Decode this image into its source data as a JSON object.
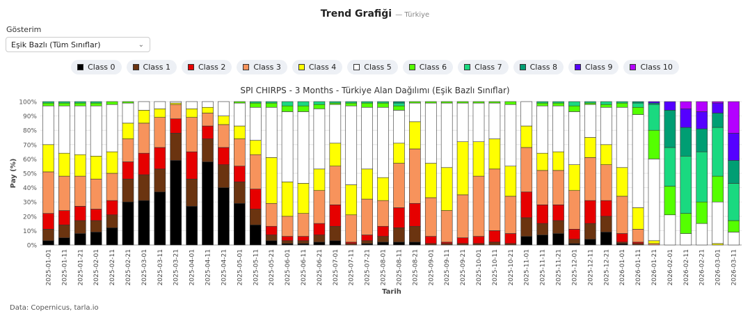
{
  "header": {
    "title": "Trend Grafiği",
    "subtitle": "— Türkiye"
  },
  "control": {
    "label": "Gösterim",
    "value": "Eşik Bazlı (Tüm Sınıflar)"
  },
  "footer": "Data: Copernicus, tarla.io",
  "chart_data": {
    "type": "bar",
    "stacked": true,
    "title": "SPI CHIRPS - 3 Months - Türkiye Alan Dağılımı (Eşik Bazlı Sınıflar)",
    "x_label": "Tarih",
    "y_label": "Pay (%)",
    "ylim": [
      0,
      100
    ],
    "yticks": [
      {
        "value": 0,
        "label": "0%"
      },
      {
        "value": 10,
        "label": "10%"
      },
      {
        "value": 20,
        "label": "20%"
      },
      {
        "value": 30,
        "label": "30%"
      },
      {
        "value": 40,
        "label": "40%"
      },
      {
        "value": 50,
        "label": "50%"
      },
      {
        "value": 60,
        "label": "60%"
      },
      {
        "value": 70,
        "label": "70%"
      },
      {
        "value": 80,
        "label": "80%"
      },
      {
        "value": 90,
        "label": "90%"
      },
      {
        "value": 100,
        "label": "100%"
      }
    ],
    "grid": true,
    "categories": [
      "2025-01-01",
      "2025-01-11",
      "2025-01-21",
      "2025-02-01",
      "2025-02-11",
      "2025-02-21",
      "2025-03-01",
      "2025-03-11",
      "2025-03-21",
      "2025-04-01",
      "2025-04-11",
      "2025-04-21",
      "2025-05-01",
      "2025-05-11",
      "2025-05-21",
      "2025-06-01",
      "2025-06-11",
      "2025-06-21",
      "2025-07-01",
      "2025-07-11",
      "2025-07-21",
      "2025-08-01",
      "2025-08-11",
      "2025-08-21",
      "2025-09-01",
      "2025-09-11",
      "2025-09-21",
      "2025-10-01",
      "2025-10-11",
      "2025-10-21",
      "2025-11-01",
      "2025-11-11",
      "2025-11-21",
      "2025-12-01",
      "2025-12-11",
      "2025-12-21",
      "2026-01-01",
      "2026-01-11",
      "2026-01-21",
      "2026-02-01",
      "2026-02-11",
      "2026-02-21",
      "2026-03-01",
      "2026-03-11"
    ],
    "series": [
      {
        "name": "Class 0",
        "color": "#000000",
        "values": [
          3,
          5,
          8,
          9,
          12,
          30,
          31,
          37,
          59,
          27,
          58,
          40,
          29,
          14,
          3,
          1,
          1,
          2,
          3,
          0,
          1,
          2,
          2,
          2,
          0,
          0,
          0,
          0,
          0,
          0,
          6,
          7,
          8,
          1,
          4,
          9,
          1,
          0,
          0,
          0,
          0,
          0,
          0,
          0
        ]
      },
      {
        "name": "Class 1",
        "color": "#6b3410",
        "values": [
          8,
          9,
          9,
          8,
          9,
          16,
          18,
          16,
          19,
          19,
          16,
          16,
          15,
          11,
          4,
          2,
          2,
          5,
          10,
          1,
          2,
          4,
          10,
          11,
          1,
          1,
          1,
          1,
          2,
          1,
          13,
          8,
          9,
          3,
          11,
          11,
          1,
          1,
          0,
          0,
          0,
          0,
          0,
          0
        ]
      },
      {
        "name": "Class 2",
        "color": "#e60000",
        "values": [
          11,
          10,
          10,
          8,
          10,
          12,
          15,
          15,
          10,
          19,
          9,
          12,
          11,
          14,
          6,
          3,
          3,
          8,
          15,
          1,
          4,
          7,
          14,
          16,
          5,
          1,
          4,
          5,
          8,
          7,
          18,
          13,
          11,
          7,
          16,
          11,
          6,
          1,
          0,
          0,
          0,
          0,
          0,
          0
        ]
      },
      {
        "name": "Class 3",
        "color": "#f7935c",
        "values": [
          29,
          24,
          21,
          21,
          19,
          16,
          21,
          21,
          10,
          24,
          9,
          16,
          19,
          24,
          16,
          14,
          16,
          23,
          27,
          19,
          25,
          18,
          31,
          38,
          27,
          22,
          30,
          42,
          43,
          26,
          31,
          24,
          24,
          27,
          30,
          25,
          26,
          9,
          1,
          0,
          0,
          0,
          0,
          0
        ]
      },
      {
        "name": "Class 4",
        "color": "#ffff00",
        "values": [
          19,
          16,
          15,
          16,
          15,
          11,
          9,
          6,
          1,
          6,
          4,
          6,
          9,
          10,
          32,
          24,
          21,
          15,
          16,
          21,
          21,
          16,
          14,
          19,
          24,
          30,
          37,
          24,
          21,
          21,
          15,
          12,
          13,
          18,
          14,
          14,
          20,
          15,
          2,
          0,
          0,
          0,
          1,
          0
        ]
      },
      {
        "name": "Class 5",
        "color": "#ffffff",
        "values": [
          27,
          33,
          34,
          35,
          33,
          14,
          6,
          5,
          1,
          5,
          4,
          10,
          16,
          23,
          35,
          49,
          50,
          42,
          27,
          55,
          43,
          49,
          23,
          13,
          42,
          45,
          27,
          27,
          25,
          43,
          17,
          33,
          32,
          37,
          23,
          26,
          42,
          65,
          57,
          21,
          8,
          15,
          29,
          9
        ]
      },
      {
        "name": "Class 6",
        "color": "#55ff00",
        "values": [
          2,
          2,
          2,
          2,
          2,
          1,
          0,
          0,
          0,
          0,
          0,
          0,
          1,
          3,
          3,
          4,
          4,
          3,
          1,
          2,
          3,
          3,
          3,
          1,
          1,
          1,
          1,
          1,
          1,
          2,
          0,
          2,
          2,
          4,
          1,
          2,
          3,
          5,
          20,
          20,
          14,
          15,
          18,
          8
        ]
      },
      {
        "name": "Class 7",
        "color": "#1ad980",
        "values": [
          1,
          1,
          1,
          1,
          0,
          0,
          0,
          0,
          0,
          0,
          0,
          0,
          0,
          1,
          1,
          3,
          3,
          2,
          1,
          1,
          1,
          1,
          2,
          0,
          0,
          0,
          0,
          0,
          0,
          0,
          0,
          1,
          1,
          3,
          1,
          2,
          1,
          3,
          18,
          27,
          40,
          35,
          34,
          26
        ]
      },
      {
        "name": "Class 8",
        "color": "#009e73",
        "values": [
          0,
          0,
          0,
          0,
          0,
          0,
          0,
          0,
          0,
          0,
          0,
          0,
          0,
          0,
          0,
          0,
          0,
          0,
          0,
          0,
          0,
          0,
          1,
          0,
          0,
          0,
          0,
          0,
          0,
          0,
          0,
          0,
          0,
          0,
          0,
          0,
          0,
          1,
          1,
          26,
          20,
          16,
          10,
          16
        ]
      },
      {
        "name": "Class 9",
        "color": "#5500ff",
        "values": [
          0,
          0,
          0,
          0,
          0,
          0,
          0,
          0,
          0,
          0,
          0,
          0,
          0,
          0,
          0,
          0,
          0,
          0,
          0,
          0,
          0,
          0,
          0,
          0,
          0,
          0,
          0,
          0,
          0,
          0,
          0,
          0,
          0,
          0,
          0,
          0,
          0,
          0,
          1,
          6,
          13,
          12,
          7,
          19
        ]
      },
      {
        "name": "Class 10",
        "color": "#b400ff",
        "values": [
          0,
          0,
          0,
          0,
          0,
          0,
          0,
          0,
          0,
          0,
          0,
          0,
          0,
          0,
          0,
          0,
          0,
          0,
          0,
          0,
          0,
          0,
          0,
          0,
          0,
          0,
          0,
          0,
          0,
          0,
          0,
          0,
          0,
          0,
          0,
          0,
          0,
          0,
          0,
          0,
          5,
          7,
          1,
          22
        ]
      }
    ]
  }
}
